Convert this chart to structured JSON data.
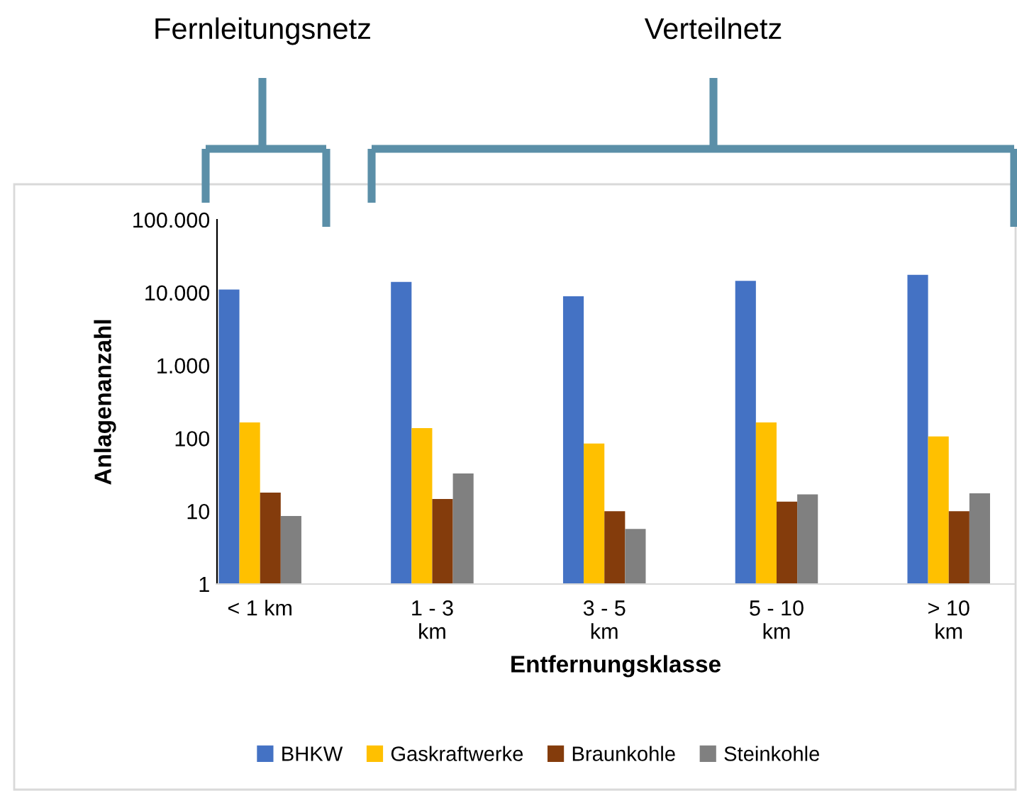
{
  "chart_data": {
    "type": "bar",
    "xlabel": "Entfernungsklasse",
    "ylabel": "Anlagenanzahl",
    "categories": [
      "< 1 km",
      "1 - 3\nkm",
      "3 - 5\nkm",
      "5 - 10\nkm",
      "> 10\nkm"
    ],
    "series": [
      {
        "name": "BHKW",
        "color": "#4472c4",
        "values": [
          11000,
          14000,
          8900,
          14500,
          17500
        ]
      },
      {
        "name": "Gaskraftwerke",
        "color": "#ffc000",
        "values": [
          165,
          138,
          85,
          165,
          106
        ]
      },
      {
        "name": "Braunkohle",
        "color": "#843c0c",
        "values": [
          18,
          14.7,
          10,
          13.5,
          10
        ]
      },
      {
        "name": "Steinkohle",
        "color": "#808080",
        "values": [
          8.6,
          33,
          5.7,
          17,
          17.6
        ]
      }
    ],
    "log": "y",
    "ylim": [
      1,
      100000
    ],
    "yticks": [
      1,
      10,
      100,
      {
        "value": 1000,
        "label": "1.000"
      },
      {
        "value": 10000,
        "label": "10.000"
      },
      {
        "value": 100000,
        "label": "100.000"
      }
    ],
    "legend": "bottom",
    "grid": false,
    "annotations": [
      "Fernleitungsnetz",
      "Verteilnetz"
    ]
  }
}
